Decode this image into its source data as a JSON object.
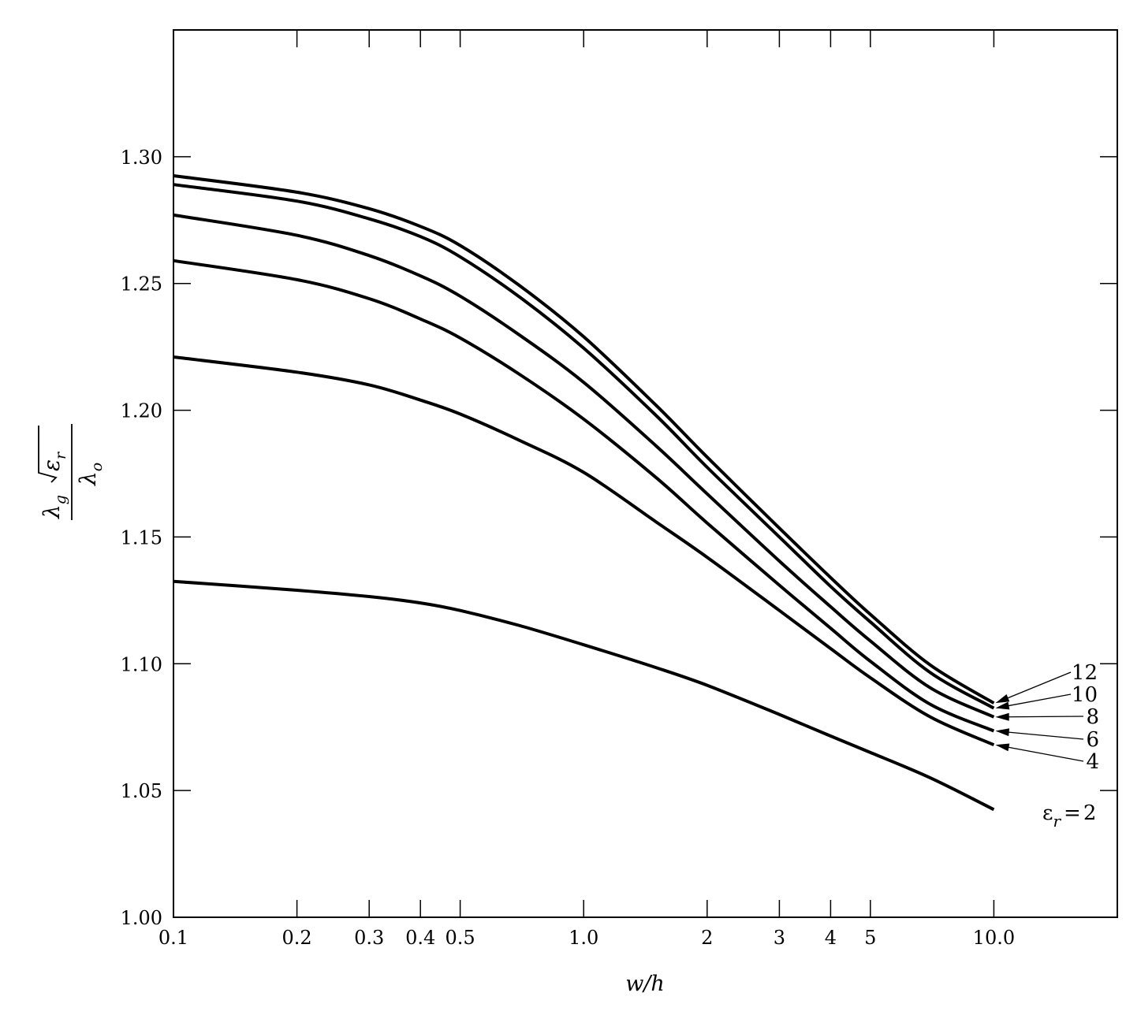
{
  "chart_data": {
    "type": "line",
    "title": "",
    "xlabel": "w/h",
    "ylabel": {
      "numerator_lambda": "λ",
      "numerator_sub": "g",
      "epsilon": "ε",
      "epsilon_sub": "r",
      "denominator_lambda": "λ",
      "denominator_sub": "o"
    },
    "xscale": "log",
    "xlim": [
      0.1,
      20
    ],
    "ylim": [
      1.0,
      1.35
    ],
    "xticks": [
      0.1,
      0.2,
      0.3,
      0.4,
      0.5,
      1.0,
      2,
      3,
      4,
      5,
      10.0
    ],
    "xtick_labels": [
      "0.1",
      "0.2",
      "0.3",
      "0.4",
      "0.5",
      "1.0",
      "2",
      "3",
      "4",
      "5",
      "10.0"
    ],
    "yticks": [
      1.0,
      1.05,
      1.1,
      1.15,
      1.2,
      1.25,
      1.3
    ],
    "ytick_labels": [
      "1.00",
      "1.05",
      "1.10",
      "1.15",
      "1.20",
      "1.25",
      "1.30"
    ],
    "grid": false,
    "x": [
      0.1,
      0.2,
      0.3,
      0.4,
      0.5,
      0.7,
      1.0,
      1.5,
      2,
      3,
      4,
      5,
      7,
      10
    ],
    "series": [
      {
        "name": "12",
        "values": [
          1.2925,
          1.286,
          1.2795,
          1.2725,
          1.265,
          1.249,
          1.229,
          1.202,
          1.1815,
          1.1535,
          1.134,
          1.1195,
          1.0995,
          1.0845
        ]
      },
      {
        "name": "10",
        "values": [
          1.289,
          1.2825,
          1.2755,
          1.2685,
          1.2605,
          1.2445,
          1.2245,
          1.198,
          1.1775,
          1.15,
          1.1305,
          1.1165,
          1.0965,
          1.0825
        ]
      },
      {
        "name": "8",
        "values": [
          1.277,
          1.269,
          1.261,
          1.253,
          1.245,
          1.2295,
          1.211,
          1.186,
          1.167,
          1.1405,
          1.1225,
          1.109,
          1.0905,
          1.079
        ]
      },
      {
        "name": "6",
        "values": [
          1.259,
          1.2515,
          1.244,
          1.236,
          1.2285,
          1.214,
          1.1965,
          1.1735,
          1.1555,
          1.131,
          1.114,
          1.101,
          1.084,
          1.0735
        ]
      },
      {
        "name": "4",
        "values": [
          1.221,
          1.215,
          1.21,
          1.204,
          1.1985,
          1.188,
          1.1755,
          1.156,
          1.142,
          1.121,
          1.106,
          1.0945,
          1.079,
          1.068
        ]
      },
      {
        "name": "ε_r = 2",
        "values": [
          1.1325,
          1.129,
          1.1265,
          1.124,
          1.121,
          1.115,
          1.1075,
          1.0985,
          1.0915,
          1.08,
          1.0715,
          1.065,
          1.055,
          1.0425
        ]
      }
    ],
    "curve_labels": [
      {
        "text": "12"
      },
      {
        "text": "10"
      },
      {
        "text": "8"
      },
      {
        "text": "6"
      },
      {
        "text": "4"
      },
      {
        "text": "2",
        "prefix": "ε",
        "prefix_sub": "r",
        "equals": "="
      }
    ]
  }
}
